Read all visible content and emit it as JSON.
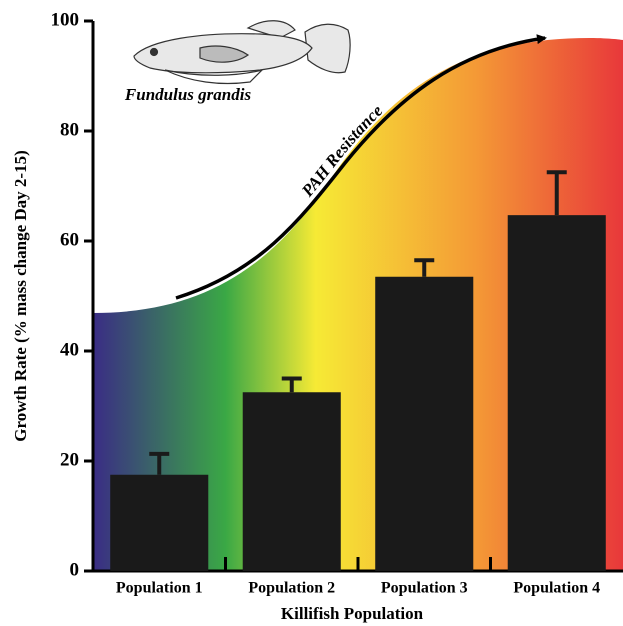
{
  "chart_data": {
    "type": "bar",
    "x_label": "Killifish Population",
    "y_label": "Growth Rate (% mass change Day 2-15)",
    "categories": [
      "Population 1",
      "Population 2",
      "Population 3",
      "Population 4"
    ],
    "values": [
      17.5,
      32.5,
      53.5,
      64.7
    ],
    "errors": [
      3.8,
      2.5,
      3,
      7.8
    ],
    "color": "#1a1a1a",
    "ylim": [
      0,
      100
    ],
    "yticks": [
      0,
      20,
      40,
      60,
      80,
      100
    ],
    "grid": false,
    "annotations": [
      "Fundulus grandis",
      "PAH Resistance"
    ]
  }
}
